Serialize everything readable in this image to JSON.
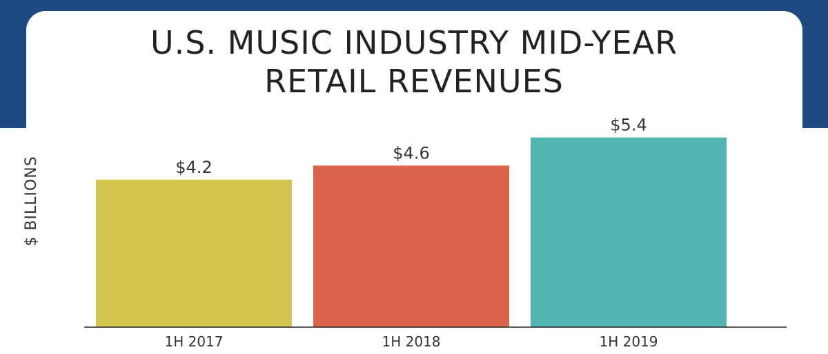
{
  "chart_data": {
    "type": "bar",
    "title": "U.S. MUSIC INDUSTRY MID-YEAR RETAIL REVENUES",
    "title_lines": [
      "U.S. MUSIC INDUSTRY MID-YEAR",
      "RETAIL REVENUES"
    ],
    "ylabel": "$ BILLIONS",
    "xlabel": "",
    "categories": [
      "1H 2017",
      "1H 2018",
      "1H 2019"
    ],
    "values": [
      4.2,
      4.6,
      5.4
    ],
    "value_labels": [
      "$4.2",
      "$4.6",
      "$5.4"
    ],
    "colors": [
      "#d4c550",
      "#d9644b",
      "#52b5b1"
    ],
    "ylim": [
      0,
      6
    ],
    "grid": false,
    "legend": "none"
  },
  "colors": {
    "banner": "#1e4a82",
    "card": "#ffffff"
  }
}
